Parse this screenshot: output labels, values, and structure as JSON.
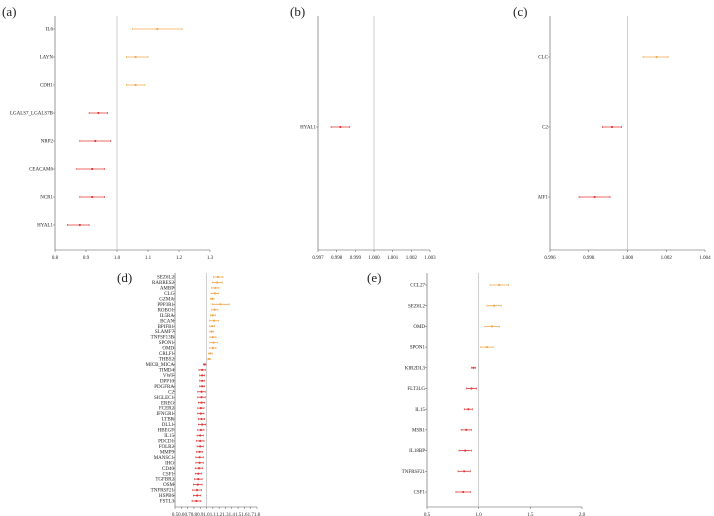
{
  "colors": {
    "above": "#f0a94f",
    "below": "#e03a3a",
    "axis": "#555555",
    "refline": "#bbbbbb"
  },
  "chart_data": [
    {
      "panel": "(a)",
      "type": "forest",
      "ref": 1.0,
      "xlim": [
        0.8,
        1.3
      ],
      "xticks": [
        "0.8",
        "0.9",
        "1.0",
        "1.1",
        "1.2",
        "1.3"
      ],
      "categories": [
        "IL6",
        "LAYN",
        "CDH1",
        "LGALS7_LGALS7B",
        "NRP2",
        "CEACAM6",
        "NCR1",
        "HYAL1"
      ],
      "or": [
        1.13,
        1.06,
        1.06,
        0.94,
        0.93,
        0.92,
        0.92,
        0.88
      ],
      "lower": [
        1.05,
        1.03,
        1.03,
        0.91,
        0.88,
        0.87,
        0.88,
        0.84
      ],
      "upper": [
        1.21,
        1.1,
        1.09,
        0.97,
        0.98,
        0.96,
        0.96,
        0.91
      ]
    },
    {
      "panel": "(b)",
      "type": "forest",
      "ref": 1.0,
      "xlim": [
        0.997,
        1.003
      ],
      "xticks": [
        "0.997",
        "0.998",
        "0.999",
        "1.000",
        "1.001",
        "1.002",
        "1.003"
      ],
      "categories": [
        "HYAL1"
      ],
      "or": [
        0.9982
      ],
      "lower": [
        0.9977
      ],
      "upper": [
        0.9987
      ]
    },
    {
      "panel": "(c)",
      "type": "forest",
      "ref": 1.0,
      "xlim": [
        0.996,
        1.004
      ],
      "xticks": [
        "0.996",
        "0.998",
        "1.000",
        "1.002",
        "1.004"
      ],
      "categories": [
        "CLC",
        "C2",
        "AIF1"
      ],
      "or": [
        1.0015,
        0.9992,
        0.9983
      ],
      "lower": [
        1.0008,
        0.9987,
        0.9975
      ],
      "upper": [
        1.0021,
        0.9997,
        0.9991
      ]
    },
    {
      "panel": "(d)",
      "type": "forest",
      "ref": 1.0,
      "xlim": [
        0.5,
        1.8
      ],
      "xticks": [
        "0.5",
        "0.6",
        "0.7",
        "0.8",
        "0.9",
        "1.0",
        "1.1",
        "1.2",
        "1.3",
        "1.4",
        "1.5",
        "1.6",
        "1.7",
        "1.8"
      ],
      "categories": [
        "SEZ6L2",
        "RARRES2",
        "AMBP",
        "CLC",
        "GZMA",
        "PPP3R1",
        "ROBO1",
        "IL5RA",
        "BCAN",
        "BPIFB1",
        "SLAMF7",
        "TNFSF13B",
        "SPON1",
        "OMD",
        "CRLF1",
        "THBS2",
        "MICB_MICA",
        "TIMD4",
        "VWF",
        "DPP10",
        "PDGFRA",
        "C2",
        "SIGLEC1",
        "EREG",
        "FCER2",
        "IFNGR1",
        "LTBR",
        "DLL1",
        "HBEGF",
        "IL15",
        "PDCD1",
        "FOLR2",
        "MMP9",
        "MANSC1",
        "IHG",
        "CD40",
        "CSF1",
        "TGFBR2",
        "OSM",
        "TNFRSF21",
        "HSPB6",
        "FSTL3"
      ],
      "or": [
        1.18,
        1.17,
        1.14,
        1.13,
        1.09,
        1.22,
        1.13,
        1.1,
        1.12,
        1.09,
        1.08,
        1.1,
        1.11,
        1.1,
        1.06,
        1.04,
        0.97,
        0.93,
        0.93,
        0.93,
        0.93,
        0.92,
        0.92,
        0.92,
        0.91,
        0.91,
        0.92,
        0.93,
        0.91,
        0.9,
        0.9,
        0.9,
        0.89,
        0.89,
        0.89,
        0.88,
        0.87,
        0.87,
        0.86,
        0.85,
        0.85,
        0.84
      ],
      "lower": [
        1.11,
        1.09,
        1.08,
        1.07,
        1.06,
        1.09,
        1.08,
        1.06,
        1.05,
        1.05,
        1.05,
        1.05,
        1.05,
        1.05,
        1.03,
        1.02,
        0.95,
        0.88,
        0.89,
        0.89,
        0.89,
        0.86,
        0.86,
        0.87,
        0.86,
        0.86,
        0.87,
        0.87,
        0.86,
        0.85,
        0.84,
        0.85,
        0.84,
        0.83,
        0.83,
        0.82,
        0.82,
        0.81,
        0.79,
        0.78,
        0.79,
        0.77
      ],
      "upper": [
        1.26,
        1.25,
        1.2,
        1.19,
        1.12,
        1.36,
        1.18,
        1.14,
        1.19,
        1.13,
        1.11,
        1.15,
        1.17,
        1.15,
        1.09,
        1.06,
        0.99,
        0.98,
        0.97,
        0.97,
        0.97,
        0.98,
        0.98,
        0.97,
        0.96,
        0.96,
        0.97,
        0.99,
        0.96,
        0.95,
        0.96,
        0.95,
        0.94,
        0.95,
        0.95,
        0.94,
        0.92,
        0.93,
        0.93,
        0.92,
        0.91,
        0.91
      ]
    },
    {
      "panel": "(e)",
      "type": "forest",
      "ref": 1.0,
      "xlim": [
        0.5,
        2.0
      ],
      "xticks": [
        "0.5",
        "1.0",
        "1.5",
        "2.0"
      ],
      "categories": [
        "CCL27",
        "SEZ6L2",
        "OMD",
        "SPON1",
        "KIR2DL3",
        "FLT3LG",
        "IL15",
        "MSR1",
        "IL18BP",
        "TNFRSF21",
        "CSF1"
      ],
      "or": [
        1.2,
        1.15,
        1.13,
        1.08,
        0.95,
        0.93,
        0.9,
        0.88,
        0.87,
        0.86,
        0.85
      ],
      "lower": [
        1.11,
        1.08,
        1.06,
        1.02,
        0.93,
        0.88,
        0.86,
        0.83,
        0.81,
        0.8,
        0.78
      ],
      "upper": [
        1.29,
        1.22,
        1.2,
        1.14,
        0.97,
        0.98,
        0.94,
        0.93,
        0.93,
        0.92,
        0.92
      ]
    }
  ]
}
